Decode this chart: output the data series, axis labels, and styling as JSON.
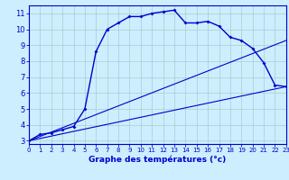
{
  "xlabel": "Graphe des températures (°c)",
  "bg_color": "#cceeff",
  "grid_color": "#aacccc",
  "line_color": "#0000cc",
  "x": [
    0,
    1,
    2,
    3,
    4,
    5,
    6,
    7,
    8,
    9,
    10,
    11,
    12,
    13,
    14,
    15,
    16,
    17,
    18,
    19,
    20,
    21,
    22,
    23
  ],
  "temp": [
    3.0,
    3.4,
    3.5,
    3.7,
    3.9,
    5.0,
    8.6,
    10.0,
    10.4,
    10.8,
    10.8,
    11.0,
    11.1,
    11.2,
    10.4,
    10.4,
    10.5,
    10.2,
    9.5,
    9.3,
    8.8,
    7.9,
    6.5,
    6.4
  ],
  "line2_x": [
    0,
    23
  ],
  "line2_y": [
    3.0,
    9.3
  ],
  "line3_x": [
    0,
    23
  ],
  "line3_y": [
    3.0,
    6.4
  ],
  "xlim": [
    0,
    23
  ],
  "ylim": [
    2.8,
    11.5
  ],
  "xticks": [
    0,
    1,
    2,
    3,
    4,
    5,
    6,
    7,
    8,
    9,
    10,
    11,
    12,
    13,
    14,
    15,
    16,
    17,
    18,
    19,
    20,
    21,
    22,
    23
  ],
  "yticks": [
    3,
    4,
    5,
    6,
    7,
    8,
    9,
    10,
    11
  ]
}
